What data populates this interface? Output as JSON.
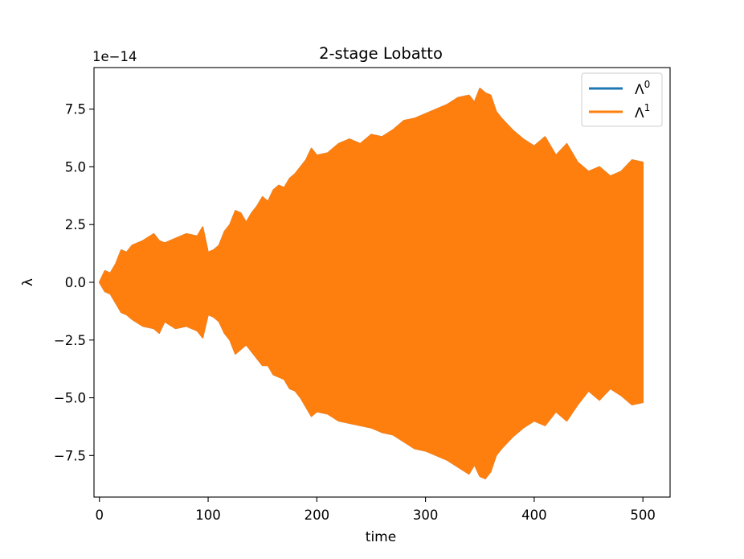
{
  "chart_data": {
    "type": "line",
    "title": "2-stage Lobatto",
    "xlabel": "time",
    "ylabel": "λ",
    "y_offset_text": "1e−14",
    "y_scale": 1e-14,
    "xlim": [
      -5,
      525
    ],
    "ylim": [
      -9.3,
      9.3
    ],
    "x_ticks": [
      0,
      100,
      200,
      300,
      400,
      500
    ],
    "x_tick_labels": [
      "0",
      "100",
      "200",
      "300",
      "400",
      "500"
    ],
    "y_ticks": [
      -7.5,
      -5.0,
      -2.5,
      0.0,
      2.5,
      5.0,
      7.5
    ],
    "y_tick_labels": [
      "−7.5",
      "−5.0",
      "−2.5",
      "0.0",
      "2.5",
      "5.0",
      "7.5"
    ],
    "grid": false,
    "legend_position": "top-right",
    "series": [
      {
        "name": "Λ",
        "name_superscript": "0",
        "color": "#1f77b4",
        "note_visible": "fully covered by Λ1",
        "envelope": {
          "x": [
            0,
            5,
            10,
            15,
            20,
            25,
            30,
            40,
            50,
            55,
            60,
            70,
            80,
            90,
            95,
            100,
            105,
            110,
            115,
            120,
            125,
            130,
            135,
            140,
            145,
            150,
            155,
            160,
            165,
            170,
            175,
            180,
            185,
            190,
            195,
            200,
            210,
            220,
            230,
            240,
            250,
            260,
            270,
            280,
            290,
            300,
            310,
            320,
            330,
            340,
            345,
            350,
            355,
            360,
            365,
            370,
            380,
            390,
            400,
            410,
            420,
            430,
            440,
            450,
            460,
            470,
            480,
            490,
            500
          ],
          "upper": [
            0.0,
            0.5,
            0.4,
            0.8,
            1.4,
            1.3,
            1.6,
            1.8,
            2.1,
            1.8,
            1.7,
            1.9,
            2.1,
            2.0,
            2.4,
            1.3,
            1.4,
            1.6,
            2.2,
            2.5,
            3.1,
            3.0,
            2.6,
            3.0,
            3.3,
            3.7,
            3.5,
            4.0,
            4.2,
            4.1,
            4.5,
            4.7,
            5.0,
            5.3,
            5.8,
            5.5,
            5.6,
            6.0,
            6.2,
            6.0,
            6.4,
            6.3,
            6.6,
            7.0,
            7.1,
            7.3,
            7.5,
            7.7,
            8.0,
            8.1,
            7.8,
            8.4,
            8.2,
            8.1,
            7.4,
            7.1,
            6.6,
            6.2,
            5.9,
            6.3,
            5.5,
            6.0,
            5.2,
            4.8,
            5.0,
            4.6,
            4.8,
            5.3,
            5.2
          ],
          "lower": [
            0.0,
            -0.4,
            -0.5,
            -0.9,
            -1.3,
            -1.4,
            -1.6,
            -1.9,
            -2.0,
            -2.2,
            -1.7,
            -2.0,
            -1.9,
            -2.1,
            -2.4,
            -1.4,
            -1.5,
            -1.7,
            -2.2,
            -2.5,
            -3.1,
            -2.9,
            -2.7,
            -3.0,
            -3.3,
            -3.6,
            -3.6,
            -4.0,
            -4.1,
            -4.2,
            -4.6,
            -4.7,
            -5.0,
            -5.4,
            -5.8,
            -5.6,
            -5.7,
            -6.0,
            -6.1,
            -6.2,
            -6.3,
            -6.5,
            -6.6,
            -6.9,
            -7.2,
            -7.3,
            -7.5,
            -7.7,
            -8.0,
            -8.3,
            -7.9,
            -8.4,
            -8.5,
            -8.2,
            -7.5,
            -7.2,
            -6.7,
            -6.3,
            -6.0,
            -6.2,
            -5.6,
            -6.0,
            -5.3,
            -4.7,
            -5.1,
            -4.6,
            -4.9,
            -5.3,
            -5.2
          ]
        }
      },
      {
        "name": "Λ",
        "name_superscript": "1",
        "color": "#ff7f0e",
        "envelope": {
          "x": [
            0,
            5,
            10,
            15,
            20,
            25,
            30,
            40,
            50,
            55,
            60,
            70,
            80,
            90,
            95,
            100,
            105,
            110,
            115,
            120,
            125,
            130,
            135,
            140,
            145,
            150,
            155,
            160,
            165,
            170,
            175,
            180,
            185,
            190,
            195,
            200,
            210,
            220,
            230,
            240,
            250,
            260,
            270,
            280,
            290,
            300,
            310,
            320,
            330,
            340,
            345,
            350,
            355,
            360,
            365,
            370,
            380,
            390,
            400,
            410,
            420,
            430,
            440,
            450,
            460,
            470,
            480,
            490,
            500
          ],
          "upper": [
            0.0,
            0.5,
            0.4,
            0.8,
            1.4,
            1.3,
            1.6,
            1.8,
            2.1,
            1.8,
            1.7,
            1.9,
            2.1,
            2.0,
            2.4,
            1.3,
            1.4,
            1.6,
            2.2,
            2.5,
            3.1,
            3.0,
            2.6,
            3.0,
            3.3,
            3.7,
            3.5,
            4.0,
            4.2,
            4.1,
            4.5,
            4.7,
            5.0,
            5.3,
            5.8,
            5.5,
            5.6,
            6.0,
            6.2,
            6.0,
            6.4,
            6.3,
            6.6,
            7.0,
            7.1,
            7.3,
            7.5,
            7.7,
            8.0,
            8.1,
            7.8,
            8.4,
            8.2,
            8.1,
            7.4,
            7.1,
            6.6,
            6.2,
            5.9,
            6.3,
            5.5,
            6.0,
            5.2,
            4.8,
            5.0,
            4.6,
            4.8,
            5.3,
            5.2
          ],
          "lower": [
            0.0,
            -0.4,
            -0.5,
            -0.9,
            -1.3,
            -1.4,
            -1.6,
            -1.9,
            -2.0,
            -2.2,
            -1.7,
            -2.0,
            -1.9,
            -2.1,
            -2.4,
            -1.4,
            -1.5,
            -1.7,
            -2.2,
            -2.5,
            -3.1,
            -2.9,
            -2.7,
            -3.0,
            -3.3,
            -3.6,
            -3.6,
            -4.0,
            -4.1,
            -4.2,
            -4.6,
            -4.7,
            -5.0,
            -5.4,
            -5.8,
            -5.6,
            -5.7,
            -6.0,
            -6.1,
            -6.2,
            -6.3,
            -6.5,
            -6.6,
            -6.9,
            -7.2,
            -7.3,
            -7.5,
            -7.7,
            -8.0,
            -8.3,
            -7.9,
            -8.4,
            -8.5,
            -8.2,
            -7.5,
            -7.2,
            -6.7,
            -6.3,
            -6.0,
            -6.2,
            -5.6,
            -6.0,
            -5.3,
            -4.7,
            -5.1,
            -4.6,
            -4.9,
            -5.3,
            -5.2
          ]
        }
      }
    ]
  }
}
